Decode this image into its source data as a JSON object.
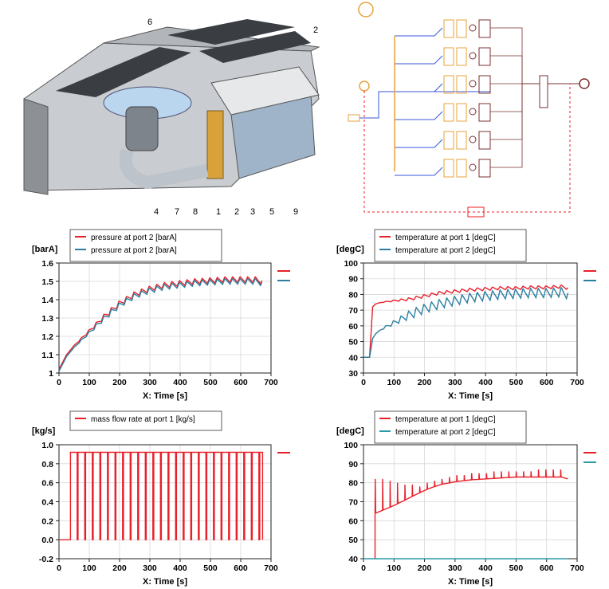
{
  "cooler_figure": {
    "part_labels": [
      "6",
      "2",
      "4",
      "7",
      "8",
      "1",
      "2",
      "3",
      "5",
      "9"
    ]
  },
  "colors": {
    "red": "#e8202a",
    "teal": "#2a7ea0",
    "orange": "#e8a23a",
    "blue": "#3b57d8",
    "brown": "#7a3030"
  },
  "chart_data": [
    {
      "type": "line",
      "unit_label": "[barA]",
      "xlabel": "X: Time [s]",
      "xlim": [
        0,
        700
      ],
      "ylim": [
        1.0,
        1.6
      ],
      "x_ticks": [
        "0",
        "100",
        "200",
        "300",
        "400",
        "500",
        "600",
        "700"
      ],
      "y_ticks": [
        "1",
        "1.1",
        "1.2",
        "1.3",
        "1.4",
        "1.5",
        "1.6"
      ],
      "legend_placement": "top-left",
      "series": [
        {
          "name": "pressure at port 2 [barA]",
          "color": "#e8202a",
          "x": [
            0,
            25,
            50,
            100,
            150,
            200,
            250,
            300,
            350,
            400,
            450,
            500,
            550,
            600,
            650,
            670
          ],
          "y": [
            1.02,
            1.1,
            1.15,
            1.23,
            1.31,
            1.38,
            1.43,
            1.46,
            1.48,
            1.49,
            1.5,
            1.505,
            1.51,
            1.51,
            1.51,
            1.5
          ],
          "ripple": 0.03
        },
        {
          "name": "pressure at port 2 [barA]",
          "color": "#2a7ea0",
          "x": [
            0,
            25,
            50,
            100,
            150,
            200,
            250,
            300,
            350,
            400,
            450,
            500,
            550,
            600,
            650,
            670
          ],
          "y": [
            1.01,
            1.09,
            1.14,
            1.22,
            1.3,
            1.37,
            1.42,
            1.45,
            1.47,
            1.48,
            1.49,
            1.495,
            1.5,
            1.5,
            1.5,
            1.49
          ],
          "ripple": 0.03
        }
      ]
    },
    {
      "type": "line",
      "unit_label": "[degC]",
      "xlabel": "X: Time [s]",
      "xlim": [
        0,
        700
      ],
      "ylim": [
        30,
        100
      ],
      "x_ticks": [
        "0",
        "100",
        "200",
        "300",
        "400",
        "500",
        "600",
        "700"
      ],
      "y_ticks": [
        "30",
        "40",
        "50",
        "60",
        "70",
        "80",
        "90",
        "100"
      ],
      "legend_placement": "top-left",
      "series": [
        {
          "name": "temperature at port 1 [degC]",
          "color": "#e8202a",
          "x": [
            0,
            20,
            30,
            40,
            60,
            100,
            150,
            200,
            250,
            300,
            350,
            400,
            450,
            500,
            550,
            600,
            650,
            670
          ],
          "y": [
            40,
            40,
            72,
            74,
            75,
            76,
            77,
            79,
            81,
            82,
            83,
            83.5,
            84,
            84,
            84.5,
            84.5,
            85,
            84
          ],
          "ripple": 2
        },
        {
          "name": "temperature at port 2 [degC]",
          "color": "#2a7ea0",
          "x": [
            0,
            20,
            30,
            40,
            60,
            100,
            150,
            200,
            250,
            300,
            350,
            400,
            450,
            500,
            550,
            600,
            650,
            670
          ],
          "y": [
            40,
            40,
            52,
            55,
            58,
            62,
            67,
            71,
            74,
            76,
            78,
            79,
            80,
            80.5,
            81,
            81,
            81.5,
            80
          ],
          "ripple": 6
        }
      ]
    },
    {
      "type": "line",
      "unit_label": "[kg/s]",
      "xlabel": "X: Time [s]",
      "xlim": [
        0,
        700
      ],
      "ylim": [
        -0.2,
        1.0
      ],
      "x_ticks": [
        "0",
        "100",
        "200",
        "300",
        "400",
        "500",
        "600",
        "700"
      ],
      "y_ticks": [
        "-0.2",
        "0.0",
        "0.2",
        "0.4",
        "0.6",
        "0.8",
        "1.0"
      ],
      "legend_placement": "top-left",
      "pulse": {
        "start": 38,
        "end": 672,
        "period": 25,
        "high": 0.92,
        "low": 0.0,
        "duty": 0.88
      },
      "series": [
        {
          "name": "mass flow rate at port 1 [kg/s]",
          "color": "#e8202a"
        }
      ]
    },
    {
      "type": "line",
      "unit_label": "[degC]",
      "xlabel": "X: Time [s]",
      "xlim": [
        0,
        700
      ],
      "ylim": [
        40,
        100
      ],
      "x_ticks": [
        "0",
        "100",
        "200",
        "300",
        "400",
        "500",
        "600",
        "700"
      ],
      "y_ticks": [
        "40",
        "50",
        "60",
        "70",
        "80",
        "90",
        "100"
      ],
      "legend_placement": "top-left",
      "series": [
        {
          "name": "temperature at port 1 [degC]",
          "color": "#e8202a",
          "x": [
            38,
            40,
            100,
            150,
            200,
            250,
            300,
            350,
            400,
            450,
            500,
            550,
            600,
            650,
            670
          ],
          "y": [
            64,
            64,
            68,
            72,
            76,
            79,
            80.5,
            81.5,
            82,
            82.5,
            83,
            83,
            83,
            83,
            82
          ],
          "spikes": [
            82,
            82,
            81,
            80,
            79,
            79,
            78,
            80,
            81,
            82,
            83,
            84,
            84,
            85,
            85,
            85,
            86,
            86,
            86,
            86,
            86,
            86,
            87,
            87,
            87,
            87
          ]
        },
        {
          "name": "temperature at port 2 [degC]",
          "color": "#2a9aa8",
          "x": [
            0,
            670
          ],
          "y": [
            40,
            40
          ]
        }
      ]
    }
  ]
}
